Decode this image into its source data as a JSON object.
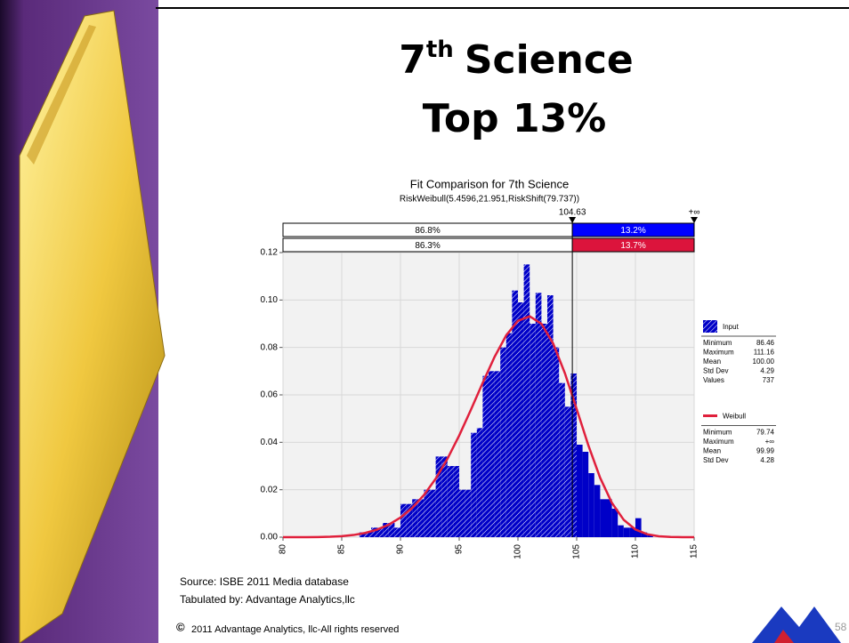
{
  "slide": {
    "title_number": "7",
    "title_suffix": "th",
    "title_rest": "Science",
    "title_line2": "Top 13%",
    "source": "Source: ISBE 2011 Media database",
    "tabulated": "Tabulated by: Advantage Analytics,llc",
    "copyright_symbol": "©",
    "copyright": "2011 Advantage Analytics, llc-All rights reserved",
    "page": "58"
  },
  "chart_data": {
    "type": "histogram",
    "title": "Fit Comparison for 7th Science",
    "subtitle": "RiskWeibull(5.4596,21.951,RiskShift(79.737))",
    "bins": [
      86.5,
      87,
      87.5,
      88,
      88.5,
      89,
      89.5,
      90,
      90.5,
      91,
      91.5,
      92,
      92.5,
      93,
      93.5,
      94,
      94.5,
      95,
      95.5,
      96,
      96.5,
      97,
      97.5,
      98,
      98.5,
      99,
      99.5,
      100,
      100.5,
      101,
      101.5,
      102,
      102.5,
      103,
      103.5,
      104,
      104.5,
      105,
      105.5,
      106,
      106.5,
      107,
      107.5,
      108,
      108.5,
      109,
      109.5,
      110,
      110.5,
      111,
      111.5
    ],
    "values": [
      0.002,
      0.002,
      0.004,
      0.004,
      0.006,
      0.006,
      0.004,
      0.014,
      0.014,
      0.016,
      0.016,
      0.02,
      0.02,
      0.034,
      0.034,
      0.03,
      0.03,
      0.02,
      0.02,
      0.044,
      0.046,
      0.068,
      0.07,
      0.07,
      0.08,
      0.086,
      0.104,
      0.099,
      0.115,
      0.09,
      0.103,
      0.09,
      0.102,
      0.08,
      0.065,
      0.055,
      0.069,
      0.039,
      0.036,
      0.027,
      0.022,
      0.016,
      0.016,
      0.012,
      0.005,
      0.004,
      0.004,
      0.008,
      0.002,
      0.001
    ],
    "color": "#0000c8",
    "curve": {
      "color": "#e0203c",
      "x": [
        80,
        81,
        82,
        83,
        84,
        85,
        86,
        87,
        88,
        89,
        90,
        91,
        92,
        93,
        94,
        95,
        96,
        97,
        98,
        99,
        100,
        101,
        102,
        103,
        104,
        105,
        106,
        107,
        108,
        109,
        110,
        111,
        112,
        113,
        114,
        115
      ],
      "values": [
        0,
        0,
        0,
        5e-05,
        0.00017,
        0.00043,
        0.00092,
        0.00179,
        0.00317,
        0.00526,
        0.00825,
        0.01235,
        0.01778,
        0.02467,
        0.03307,
        0.04288,
        0.05375,
        0.06507,
        0.07592,
        0.08509,
        0.09124,
        0.09312,
        0.08995,
        0.08164,
        0.06908,
        0.05401,
        0.03863,
        0.025,
        0.01443,
        0.00733,
        0.00324,
        0.00123,
        0.00039,
        0.0001,
        0,
        0
      ]
    },
    "delimiter": {
      "value": 104.63,
      "upper_label": "+∞"
    },
    "fit_bars": [
      {
        "color": "#0000ff",
        "values": [
          86.8,
          13.2
        ],
        "value_labels": [
          "86.8%",
          "13.2%"
        ]
      },
      {
        "color": "#dc143c",
        "values": [
          86.3,
          13.7
        ],
        "value_labels": [
          "86.3%",
          "13.7%"
        ]
      }
    ],
    "xlim": [
      80,
      115
    ],
    "ylim": [
      0,
      0.12
    ],
    "xticks": [
      80,
      85,
      90,
      95,
      100,
      105,
      110,
      115
    ],
    "yticks": [
      {
        "value": 0,
        "label": "0.00"
      },
      0.02,
      0.04,
      0.06,
      0.08,
      {
        "value": 0.1,
        "label": "0.10"
      },
      0.12
    ],
    "grid": true,
    "legend": [
      {
        "name": "Input",
        "stats": [
          [
            "Minimum",
            "86.46"
          ],
          [
            "Maximum",
            "111.16"
          ],
          [
            "Mean",
            "100.00"
          ],
          [
            "Std Dev",
            "4.29"
          ],
          [
            "Values",
            "737"
          ]
        ]
      },
      {
        "name": "Weibull",
        "stats": [
          [
            "Minimum",
            "79.74"
          ],
          [
            "Maximum",
            "+∞"
          ],
          [
            "Mean",
            "99.99"
          ],
          [
            "Std Dev",
            "4.28"
          ]
        ]
      }
    ]
  }
}
